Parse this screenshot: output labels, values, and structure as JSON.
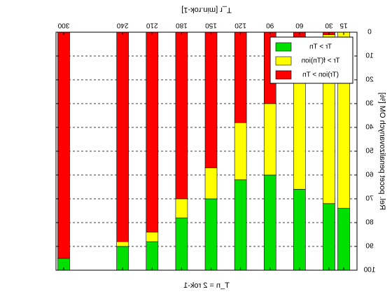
{
  "chart_data": {
    "type": "bar",
    "stacked": true,
    "orientation": "vertical",
    "mirrored": true,
    "top_xlabel": "T_r [min.rok-1]",
    "bottom_xlabel": "T_n = 2 rok-1",
    "ylabel": "Rel. pocet penalizovanych OM [%]",
    "categories": [
      "15",
      "30",
      "60",
      "90",
      "120",
      "150",
      "180",
      "210",
      "240",
      "300"
    ],
    "y_axis_inverted": true,
    "ylim": [
      0,
      100
    ],
    "y_ticks": [
      0,
      10,
      20,
      30,
      40,
      50,
      60,
      70,
      80,
      90,
      100
    ],
    "grid": "horizontal dashed",
    "legend_position": "top-right",
    "series": [
      {
        "name": "Tr > Tn",
        "color": "#00e000",
        "values": [
          26,
          28,
          34,
          40,
          38,
          30,
          22,
          12,
          10,
          5
        ]
      },
      {
        "name": "Tr > f(Tn)ion",
        "color": "#ffff00",
        "values": [
          74,
          71,
          58,
          30,
          24,
          13,
          8,
          4,
          2,
          0
        ]
      },
      {
        "name": "(Tr)ion > Tn",
        "color": "#ff0000",
        "values": [
          0,
          1,
          8,
          30,
          38,
          57,
          70,
          84,
          88,
          95
        ]
      }
    ]
  }
}
